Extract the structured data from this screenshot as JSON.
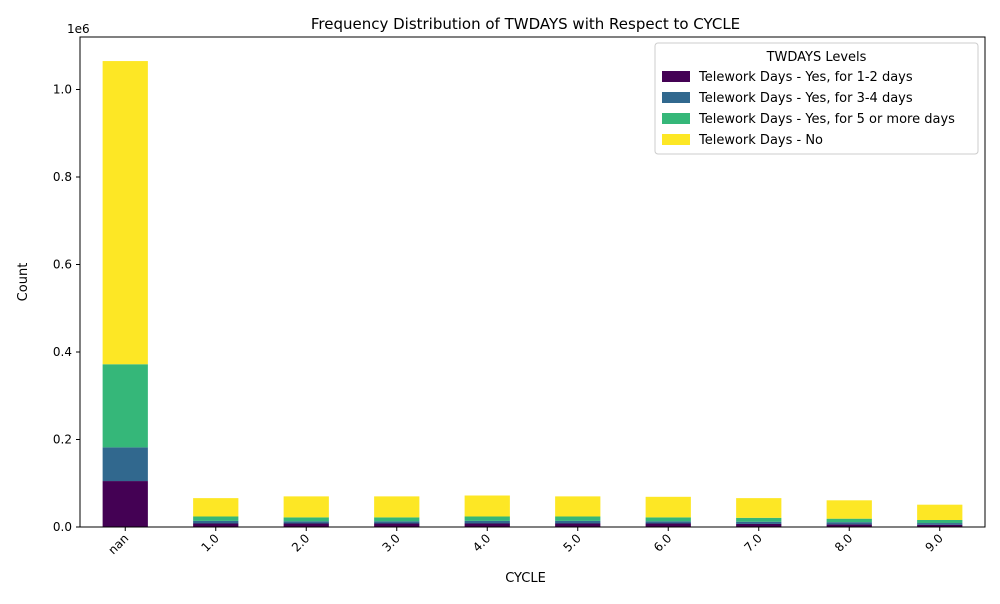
{
  "chart_data": {
    "type": "bar",
    "stacked": true,
    "title": "Frequency Distribution of TWDAYS with Respect to CYCLE",
    "xlabel": "CYCLE",
    "ylabel": "Count",
    "y_offset_label": "1e6",
    "y_scale_factor": 1000000,
    "ylim": [
      0,
      1120000
    ],
    "y_ticks": [
      0,
      200000,
      400000,
      600000,
      800000,
      1000000
    ],
    "y_tick_labels": [
      "0.0",
      "0.2",
      "0.4",
      "0.6",
      "0.8",
      "1.0"
    ],
    "categories": [
      "nan",
      "1.0",
      "2.0",
      "3.0",
      "4.0",
      "5.0",
      "6.0",
      "7.0",
      "8.0",
      "9.0"
    ],
    "legend": {
      "title": "TWDAYS Levels",
      "placement": "top-right"
    },
    "grid": false,
    "series": [
      {
        "name": "Telework Days - Yes, for 1-2 days",
        "color": "#440154",
        "values": [
          105000,
          8000,
          8000,
          8000,
          8000,
          8000,
          8000,
          7000,
          6000,
          5000
        ]
      },
      {
        "name": "Telework Days - Yes, for 3-4 days",
        "color": "#31688e",
        "values": [
          77000,
          6000,
          5000,
          5000,
          6000,
          6000,
          5000,
          5000,
          5000,
          4000
        ]
      },
      {
        "name": "Telework Days - Yes, for 5 or more days",
        "color": "#35b779",
        "values": [
          190000,
          10000,
          9000,
          9000,
          10000,
          10000,
          9000,
          9000,
          8000,
          7000
        ]
      },
      {
        "name": "Telework Days - No",
        "color": "#fde725",
        "values": [
          693000,
          42000,
          48000,
          48000,
          48000,
          46000,
          47000,
          45000,
          42000,
          35000
        ]
      }
    ]
  }
}
